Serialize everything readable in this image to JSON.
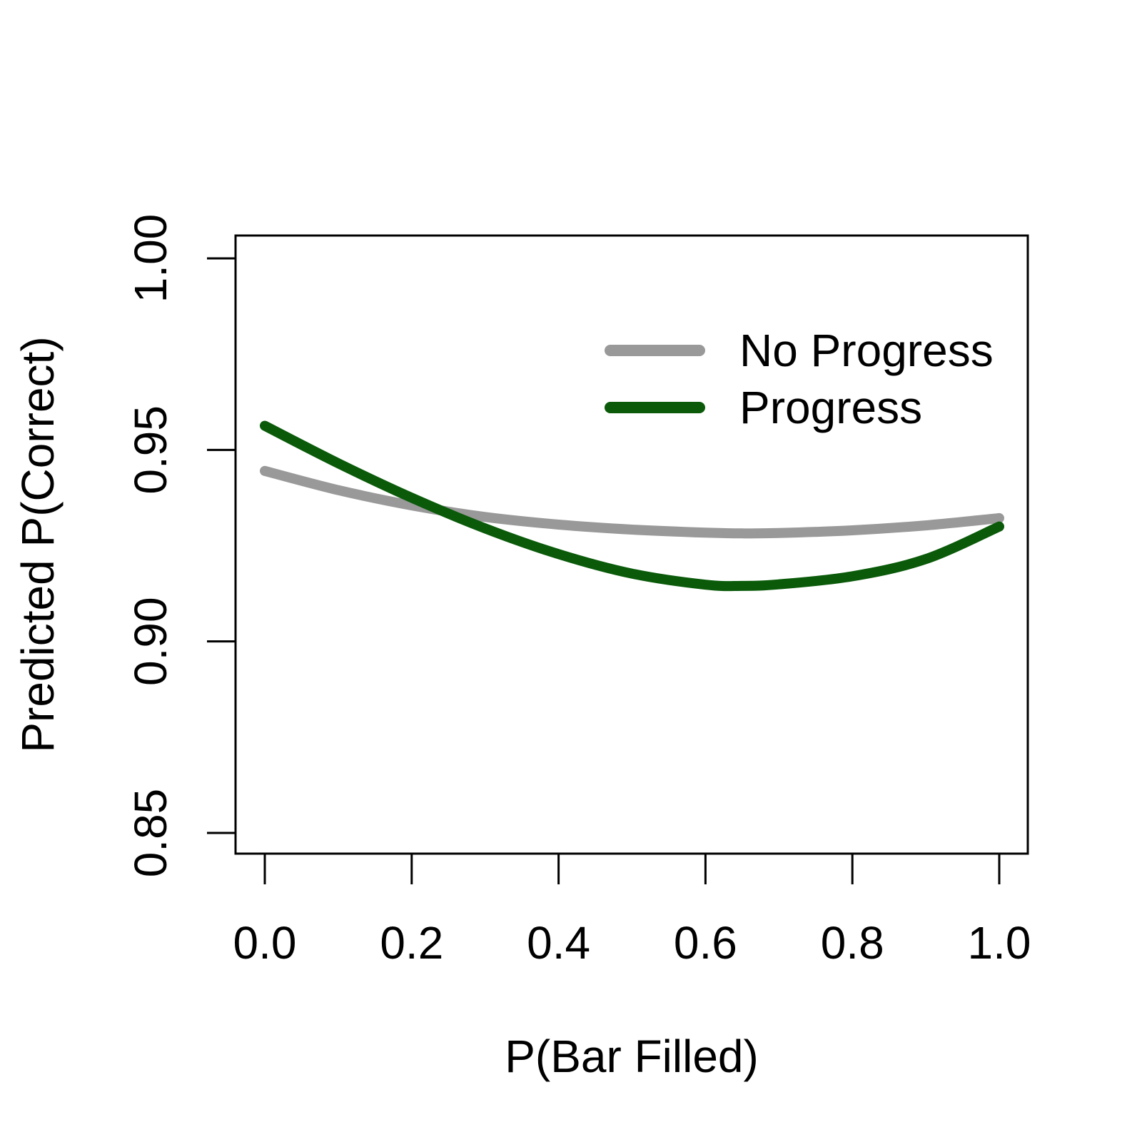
{
  "chart_data": {
    "type": "line",
    "title": "",
    "xlabel": "P(Bar Filled)",
    "ylabel": "Predicted P(Correct)",
    "xlim": [
      0.0,
      1.0
    ],
    "ylim": [
      0.85,
      1.0
    ],
    "xticks": [
      0.0,
      0.2,
      0.4,
      0.6,
      0.8,
      1.0
    ],
    "xtick_labels": [
      "0.0",
      "0.2",
      "0.4",
      "0.6",
      "0.8",
      "1.0"
    ],
    "yticks": [
      0.85,
      0.9,
      0.95,
      1.0
    ],
    "ytick_labels": [
      "0.85",
      "0.90",
      "0.95",
      "1.00"
    ],
    "grid": false,
    "legend_position": "top-right",
    "series": [
      {
        "name": "No Progress",
        "color": "#999999",
        "x": [
          0.0,
          0.1,
          0.2,
          0.3,
          0.4,
          0.5,
          0.6,
          0.65,
          0.7,
          0.8,
          0.9,
          1.0
        ],
        "y": [
          0.9445,
          0.9395,
          0.9355,
          0.9325,
          0.9305,
          0.9292,
          0.9284,
          0.9282,
          0.9283,
          0.929,
          0.9303,
          0.9322
        ]
      },
      {
        "name": "Progress",
        "color": "#0a5a0a",
        "x": [
          0.0,
          0.1,
          0.2,
          0.3,
          0.4,
          0.5,
          0.6,
          0.65,
          0.7,
          0.8,
          0.9,
          1.0
        ],
        "y": [
          0.9563,
          0.9465,
          0.9375,
          0.9295,
          0.9228,
          0.9177,
          0.9148,
          0.9145,
          0.9149,
          0.917,
          0.9215,
          0.93
        ]
      }
    ]
  }
}
